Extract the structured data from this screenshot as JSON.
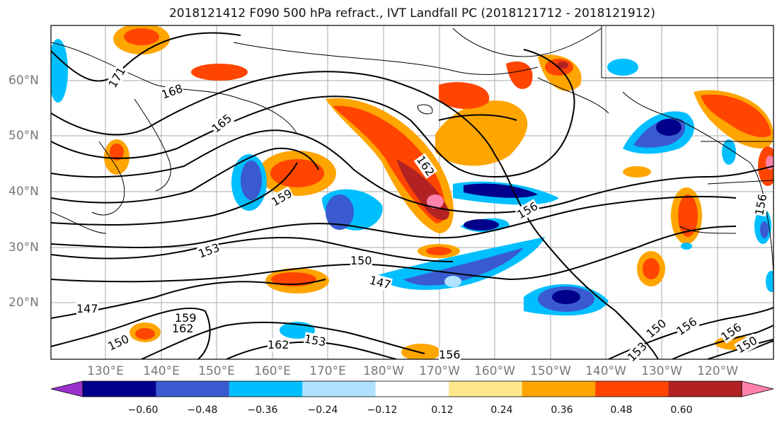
{
  "title": "2018121412 F090 500 hPa refract., IVT Landfall PC (2018121712 - 2018121912)",
  "lat_labels": [
    "60°N",
    "50°N",
    "40°N",
    "30°N",
    "20°N"
  ],
  "lon_labels": [
    "130°E",
    "140°E",
    "150°E",
    "160°E",
    "170°E",
    "180°W",
    "170°W",
    "160°W",
    "150°W",
    "140°W",
    "130°W",
    "120°W"
  ],
  "contour_labels": [
    "171",
    "168",
    "165",
    "162",
    "159",
    "156",
    "153",
    "150",
    "147",
    "147",
    "159",
    "162",
    "162",
    "153",
    "150",
    "150",
    "156",
    "156",
    "153",
    "150",
    "156",
    "156"
  ],
  "colorbar": {
    "tick_labels": [
      "−0.60",
      "−0.48",
      "−0.36",
      "−0.24",
      "−0.12",
      "0.12",
      "0.24",
      "0.36",
      "0.48",
      "0.60"
    ],
    "colors": [
      "#9932cc",
      "#00008b",
      "#3a5bd0",
      "#00bfff",
      "#b0e2ff",
      "#ffffff",
      "#ffe88c",
      "#ffa500",
      "#ff4500",
      "#b22222",
      "#ff82ab"
    ]
  },
  "map_colors": {
    "land_line": "#000000",
    "grid": "#aaaaaa",
    "contour": "#000000"
  }
}
